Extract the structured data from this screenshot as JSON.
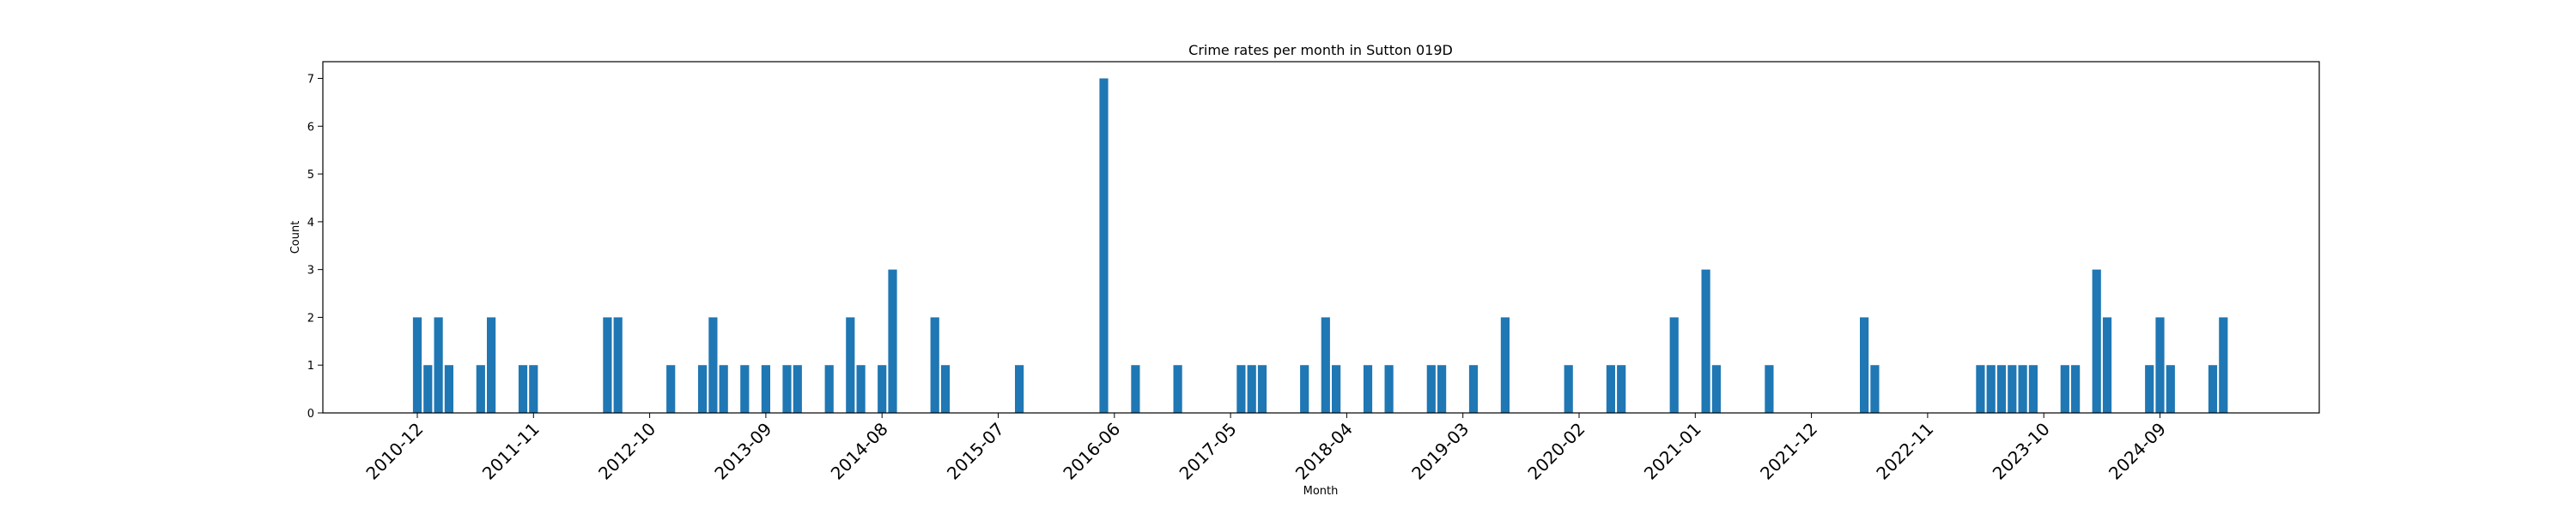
{
  "chart_data": {
    "type": "bar",
    "title": "Crime rates per month in Sutton 019D",
    "xlabel": "Month",
    "ylabel": "Count",
    "ylim": [
      0,
      7.35
    ],
    "yticks": [
      0,
      1,
      2,
      3,
      4,
      5,
      6,
      7
    ],
    "xtick_labels": [
      "2010-12",
      "2011-11",
      "2012-10",
      "2013-09",
      "2014-08",
      "2015-07",
      "2016-06",
      "2017-05",
      "2018-04",
      "2019-03",
      "2020-02",
      "2021-01",
      "2021-12",
      "2022-11",
      "2023-10",
      "2024-09"
    ],
    "bar_color": "#1f77b4",
    "categories": [
      "2010-12",
      "2011-01",
      "2011-02",
      "2011-03",
      "2011-06",
      "2011-07",
      "2011-10",
      "2011-11",
      "2012-06",
      "2012-07",
      "2012-12",
      "2013-03",
      "2013-04",
      "2013-05",
      "2013-07",
      "2013-09",
      "2013-11",
      "2013-12",
      "2014-03",
      "2014-05",
      "2014-06",
      "2014-08",
      "2014-09",
      "2015-01",
      "2015-02",
      "2015-09",
      "2016-05",
      "2016-08",
      "2016-12",
      "2017-06",
      "2017-07",
      "2017-08",
      "2017-12",
      "2018-02",
      "2018-03",
      "2018-06",
      "2018-08",
      "2018-12",
      "2019-01",
      "2019-04",
      "2019-07",
      "2020-01",
      "2020-05",
      "2020-06",
      "2020-11",
      "2021-02",
      "2021-03",
      "2021-08",
      "2022-05",
      "2022-06",
      "2023-04",
      "2023-05",
      "2023-06",
      "2023-07",
      "2023-08",
      "2023-09",
      "2023-12",
      "2024-01",
      "2024-03",
      "2024-04",
      "2024-08",
      "2024-09",
      "2024-10",
      "2025-02",
      "2025-03"
    ],
    "values": [
      2,
      1,
      2,
      1,
      1,
      2,
      1,
      1,
      2,
      2,
      1,
      1,
      2,
      1,
      1,
      1,
      1,
      1,
      1,
      2,
      1,
      1,
      3,
      2,
      1,
      1,
      7,
      1,
      1,
      1,
      1,
      1,
      1,
      2,
      1,
      1,
      1,
      1,
      1,
      1,
      2,
      1,
      1,
      1,
      2,
      3,
      1,
      1,
      2,
      1,
      1,
      1,
      1,
      1,
      1,
      1,
      1,
      1,
      3,
      2,
      1,
      2,
      1,
      1,
      2
    ]
  }
}
